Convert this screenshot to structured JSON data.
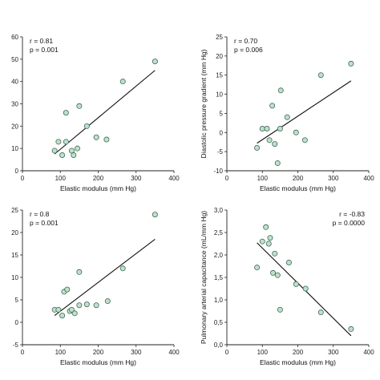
{
  "chart_data": [
    {
      "type": "scatter",
      "xlabel": "Elastic modulus (mm Hg)",
      "ylabel": "",
      "xlim": [
        0,
        400
      ],
      "ylim": [
        0,
        60
      ],
      "xticks": [
        "0",
        "100",
        "200",
        "300",
        "400"
      ],
      "yticks": [
        "0",
        "10",
        "20",
        "30",
        "40",
        "50",
        "60"
      ],
      "annotations": [
        "r = 0.81",
        "p = 0.001"
      ],
      "annotation_placement": "top-left",
      "fit": {
        "x": [
          85,
          350
        ],
        "y": [
          7.5,
          45
        ]
      },
      "x": [
        85,
        95,
        105,
        115,
        115,
        130,
        135,
        145,
        150,
        170,
        195,
        222,
        265,
        350
      ],
      "y": [
        9,
        13,
        7,
        13,
        26,
        9,
        7,
        10,
        29,
        20,
        15,
        14,
        40,
        49
      ]
    },
    {
      "type": "scatter",
      "xlabel": "Elastic modulus (mm Hg)",
      "ylabel": "Diastolic pressure gradient (mm Hg)",
      "xlim": [
        0,
        400
      ],
      "ylim": [
        -10,
        25
      ],
      "xticks": [
        "0",
        "100",
        "200",
        "300",
        "400"
      ],
      "yticks": [
        "-10",
        "-5",
        "0",
        "5",
        "10",
        "15",
        "20",
        "25"
      ],
      "annotations": [
        "r = 0.70",
        "p = 0.006"
      ],
      "annotation_placement": "top-left",
      "fit": {
        "x": [
          85,
          350
        ],
        "y": [
          -2.8,
          13.5
        ]
      },
      "x": [
        85,
        100,
        113,
        120,
        128,
        135,
        143,
        150,
        152,
        170,
        195,
        220,
        265,
        350
      ],
      "y": [
        -4,
        1,
        1,
        -2,
        7,
        -3,
        -8,
        1,
        11,
        4,
        0,
        -2,
        15,
        18
      ]
    },
    {
      "type": "scatter",
      "xlabel": "Elastic modulus (mm Hg)",
      "ylabel": "",
      "xlim": [
        0,
        400
      ],
      "ylim": [
        -5,
        25
      ],
      "xticks": [
        "0",
        "100",
        "200",
        "300",
        "400"
      ],
      "yticks": [
        "-5",
        "0",
        "5",
        "10",
        "15",
        "20",
        "25"
      ],
      "annotations": [
        "r = 0.8",
        "p = 0.001"
      ],
      "annotation_placement": "top-left",
      "fit": {
        "x": [
          85,
          350
        ],
        "y": [
          1.5,
          18.5
        ]
      },
      "x": [
        85,
        95,
        105,
        110,
        118,
        125,
        130,
        138,
        150,
        150,
        170,
        195,
        225,
        265,
        350
      ],
      "y": [
        2.8,
        2.8,
        1.5,
        6.8,
        7.3,
        2.5,
        2.8,
        2,
        11.2,
        3.8,
        4,
        3.8,
        4.7,
        12,
        24
      ]
    },
    {
      "type": "scatter",
      "xlabel": "Elastic modulus (mm Hg)",
      "ylabel": "Pulmonary arterial capacitance (mL/mm Hg)",
      "xlim": [
        0,
        400
      ],
      "ylim": [
        0.0,
        3.0
      ],
      "xticks": [
        "0",
        "100",
        "200",
        "300",
        "400"
      ],
      "yticks": [
        "0,0",
        "0,5",
        "1,0",
        "1,5",
        "2,0",
        "2,5",
        "3,0"
      ],
      "annotations": [
        "r = -0.83",
        "p = 0.0000"
      ],
      "annotation_placement": "top-right",
      "fit": {
        "x": [
          85,
          350
        ],
        "y": [
          2.27,
          0.2
        ]
      },
      "x": [
        85,
        100,
        110,
        118,
        122,
        130,
        135,
        143,
        150,
        175,
        195,
        222,
        265,
        350
      ],
      "y": [
        1.72,
        2.3,
        2.62,
        2.25,
        2.38,
        1.6,
        2.03,
        1.55,
        0.78,
        1.83,
        1.35,
        1.25,
        0.72,
        0.35
      ]
    }
  ]
}
